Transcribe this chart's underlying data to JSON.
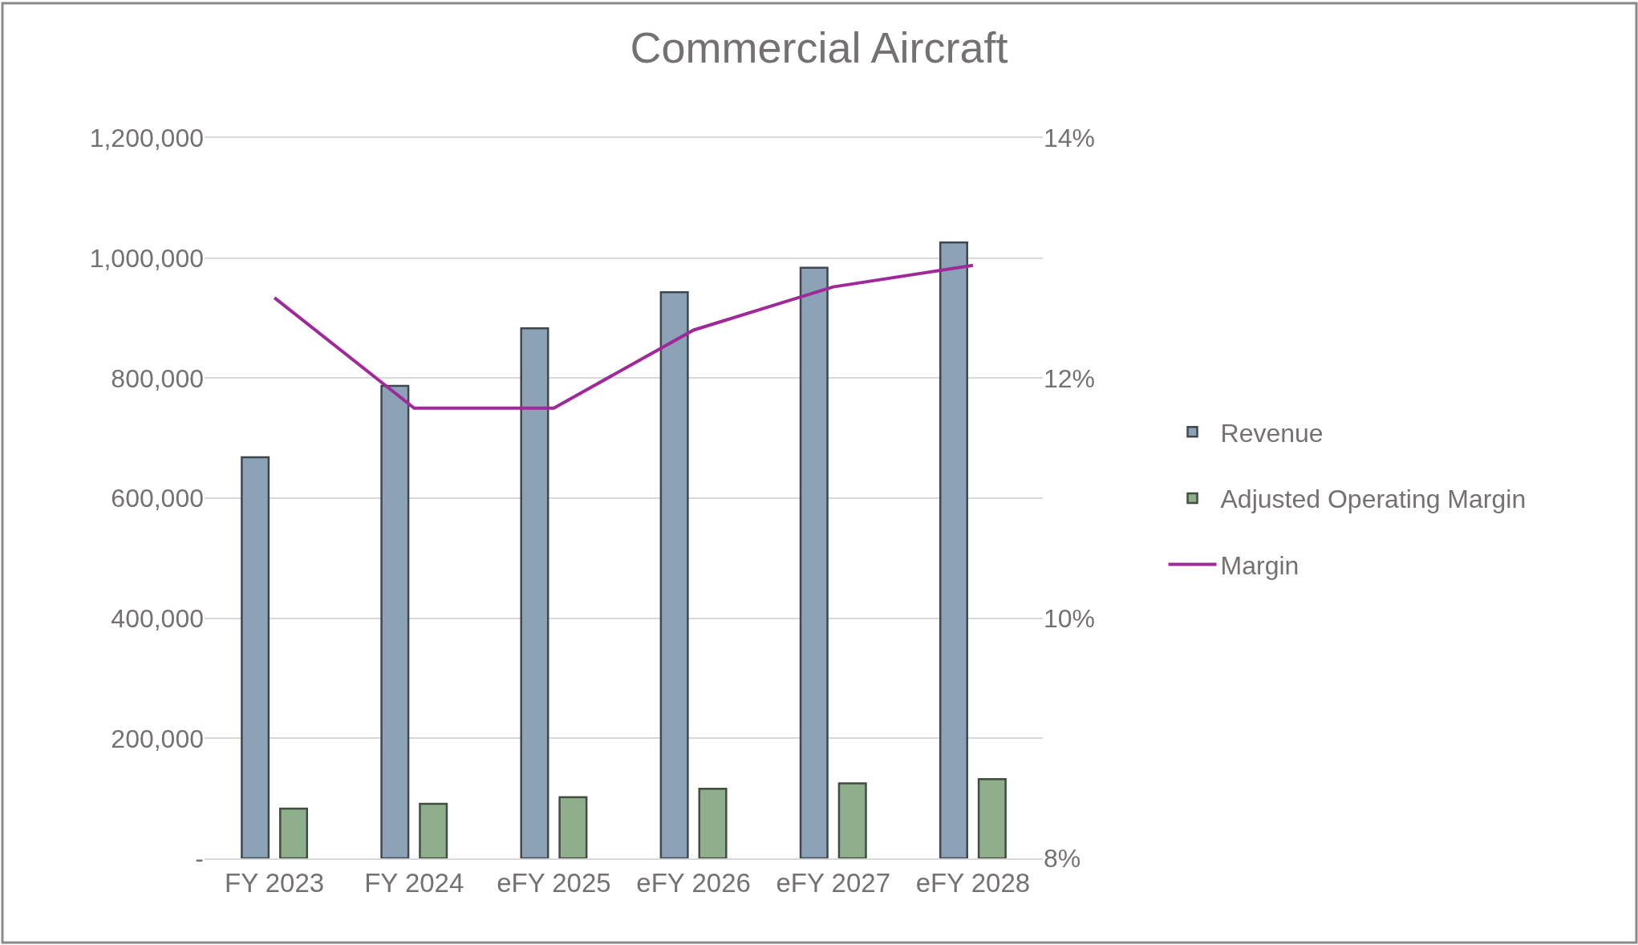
{
  "chart_data": {
    "type": "bar",
    "title": "Commercial Aircraft",
    "categories": [
      "FY 2023",
      "FY 2024",
      "eFY 2025",
      "eFY 2026",
      "eFY 2027",
      "eFY 2028"
    ],
    "series": [
      {
        "name": "Revenue",
        "color": "#8ca2b6",
        "values": [
          668000,
          787000,
          883000,
          943000,
          984000,
          1026000
        ]
      },
      {
        "name": "Adjusted Operating Margin",
        "color": "#8fae8c",
        "values": [
          83000,
          91000,
          102000,
          116000,
          125000,
          132000
        ]
      },
      {
        "name": "Margin",
        "type": "line",
        "axis": "y2",
        "color": "#a0299a",
        "values": [
          12.67,
          11.75,
          11.75,
          12.4,
          12.76,
          12.94
        ]
      }
    ],
    "ylim": [
      0,
      1200000
    ],
    "yticks": [
      {
        "value": 0,
        "label": "-"
      },
      {
        "value": 200000,
        "label": "200,000"
      },
      {
        "value": 400000,
        "label": "400,000"
      },
      {
        "value": 600000,
        "label": "600,000"
      },
      {
        "value": 800000,
        "label": "800,000"
      },
      {
        "value": 1000000,
        "label": "1,000,000"
      },
      {
        "value": 1200000,
        "label": "1,200,000"
      }
    ],
    "y2lim": [
      8,
      14
    ],
    "y2ticks": [
      {
        "value": 8,
        "label": "8%"
      },
      {
        "value": 10,
        "label": "10%"
      },
      {
        "value": 12,
        "label": "12%"
      },
      {
        "value": 14,
        "label": "14%"
      }
    ],
    "grid": "y",
    "legend": "right",
    "marker": "none",
    "line_style": "solid"
  }
}
